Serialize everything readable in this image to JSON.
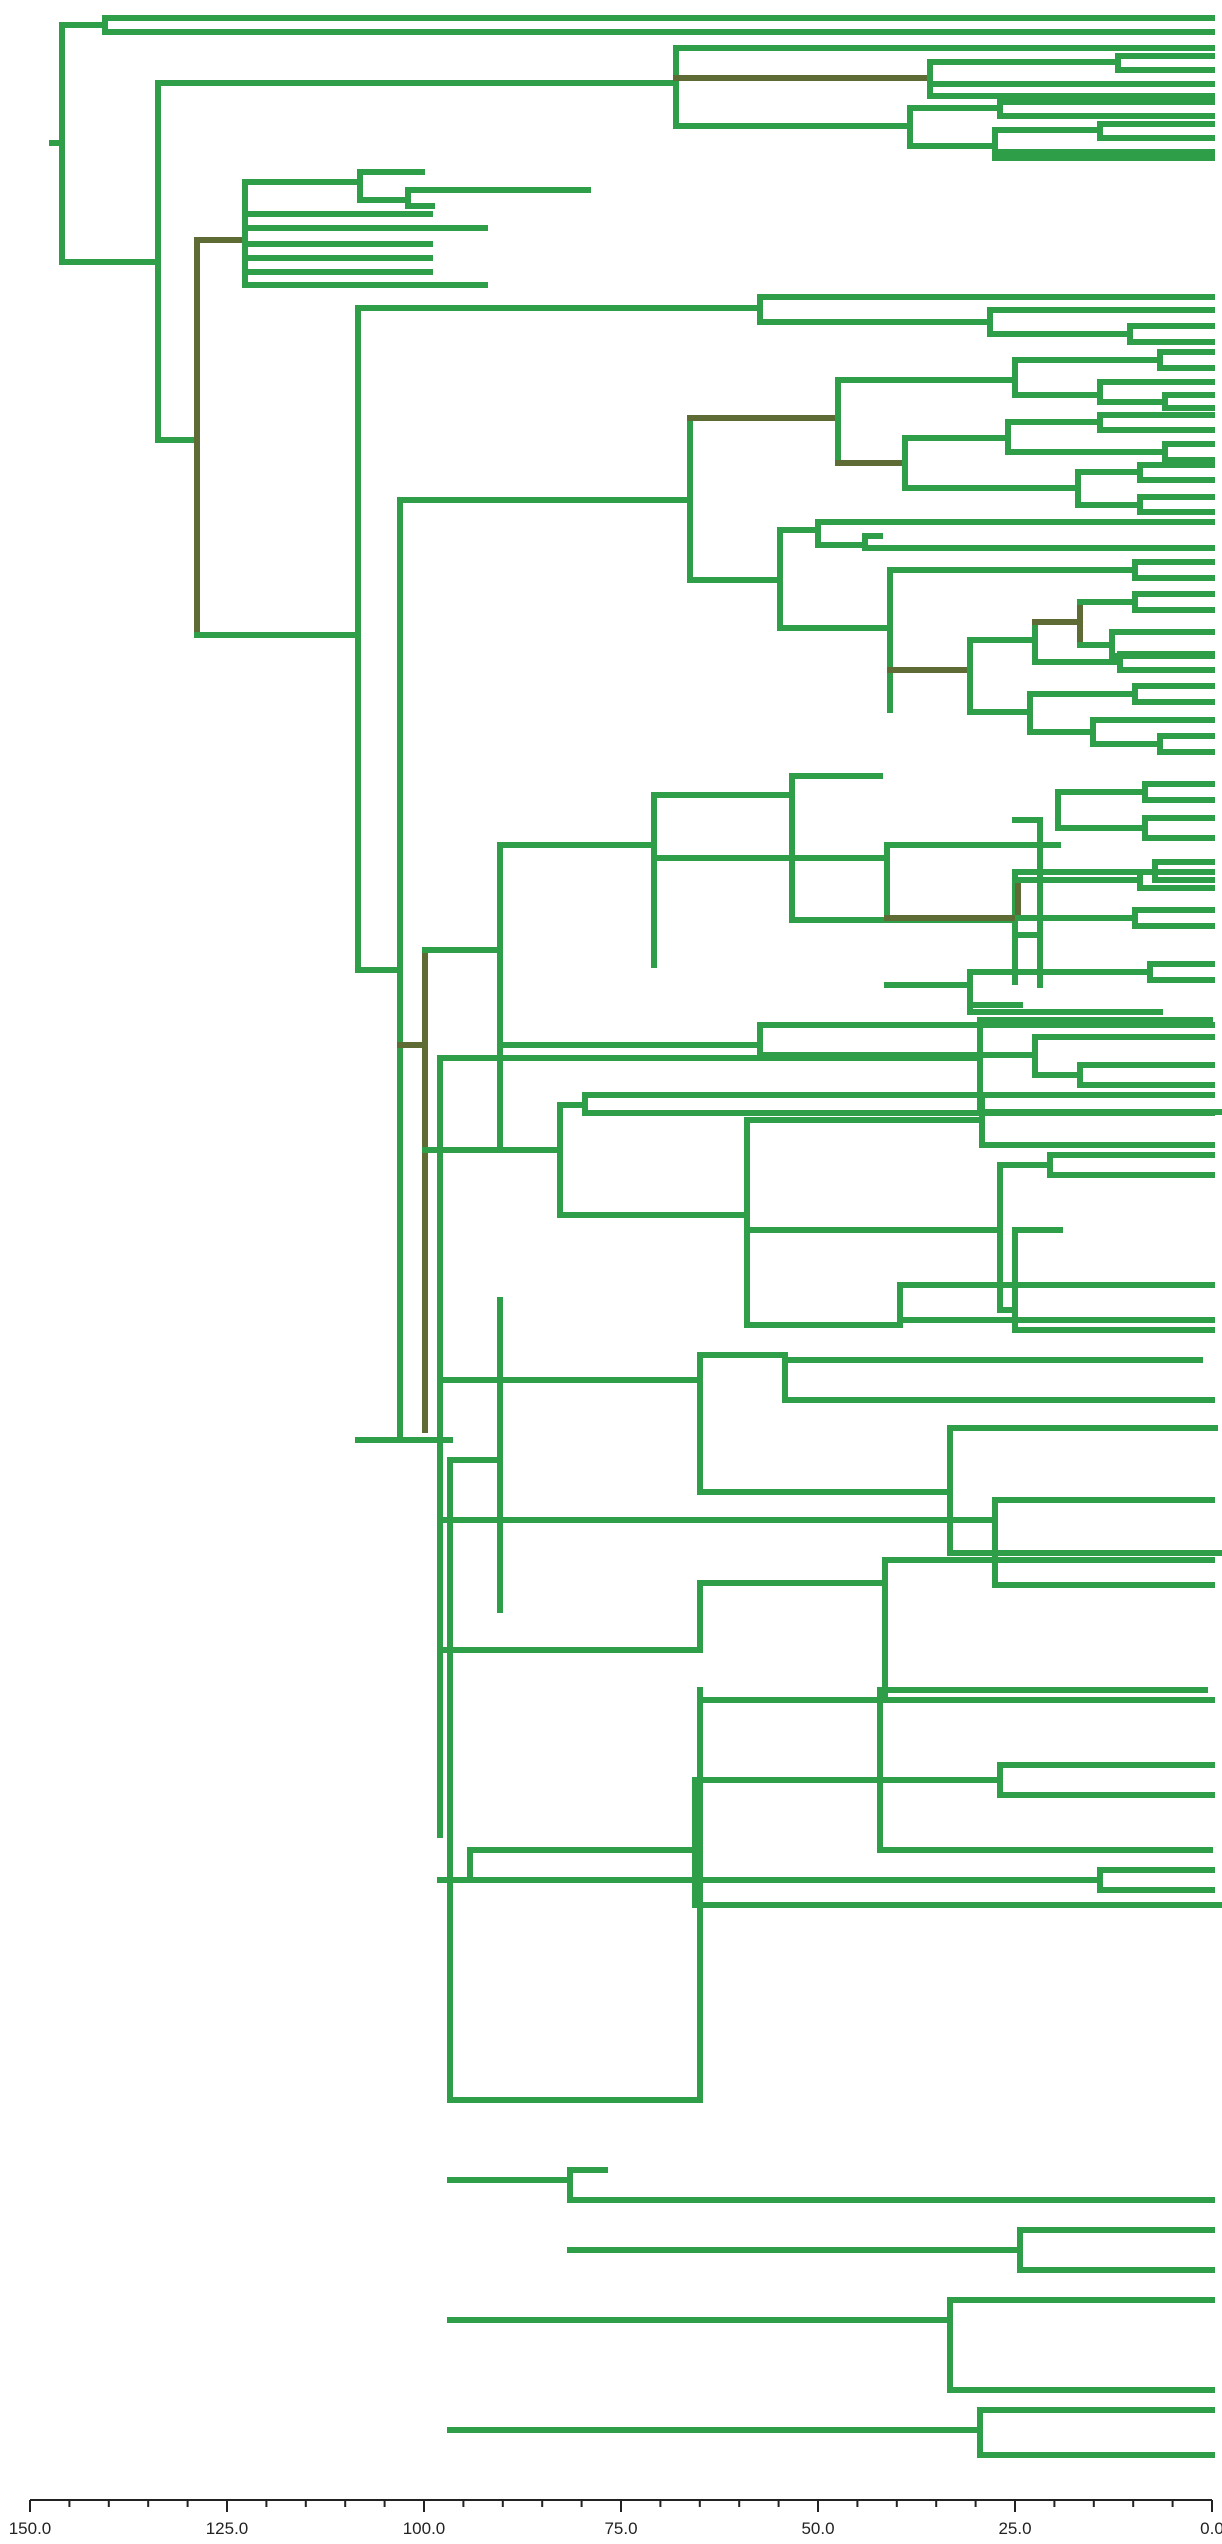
{
  "axis": {
    "ticks": [
      {
        "value": 150,
        "label": "150.0"
      },
      {
        "value": 125,
        "label": "125.0"
      },
      {
        "value": 100,
        "label": "100.0"
      },
      {
        "value": 75,
        "label": "75.0"
      },
      {
        "value": 50,
        "label": "50.0"
      },
      {
        "value": 25,
        "label": "25.0"
      },
      {
        "value": 0,
        "label": "0.0"
      }
    ],
    "range": [
      150,
      0
    ],
    "minor_tick_step": 5
  },
  "colors": {
    "branch": "#2e9e48",
    "highlight_branch": "#5f6b35",
    "axis": "#222222"
  },
  "tree": {
    "description_hidden": true
  }
}
